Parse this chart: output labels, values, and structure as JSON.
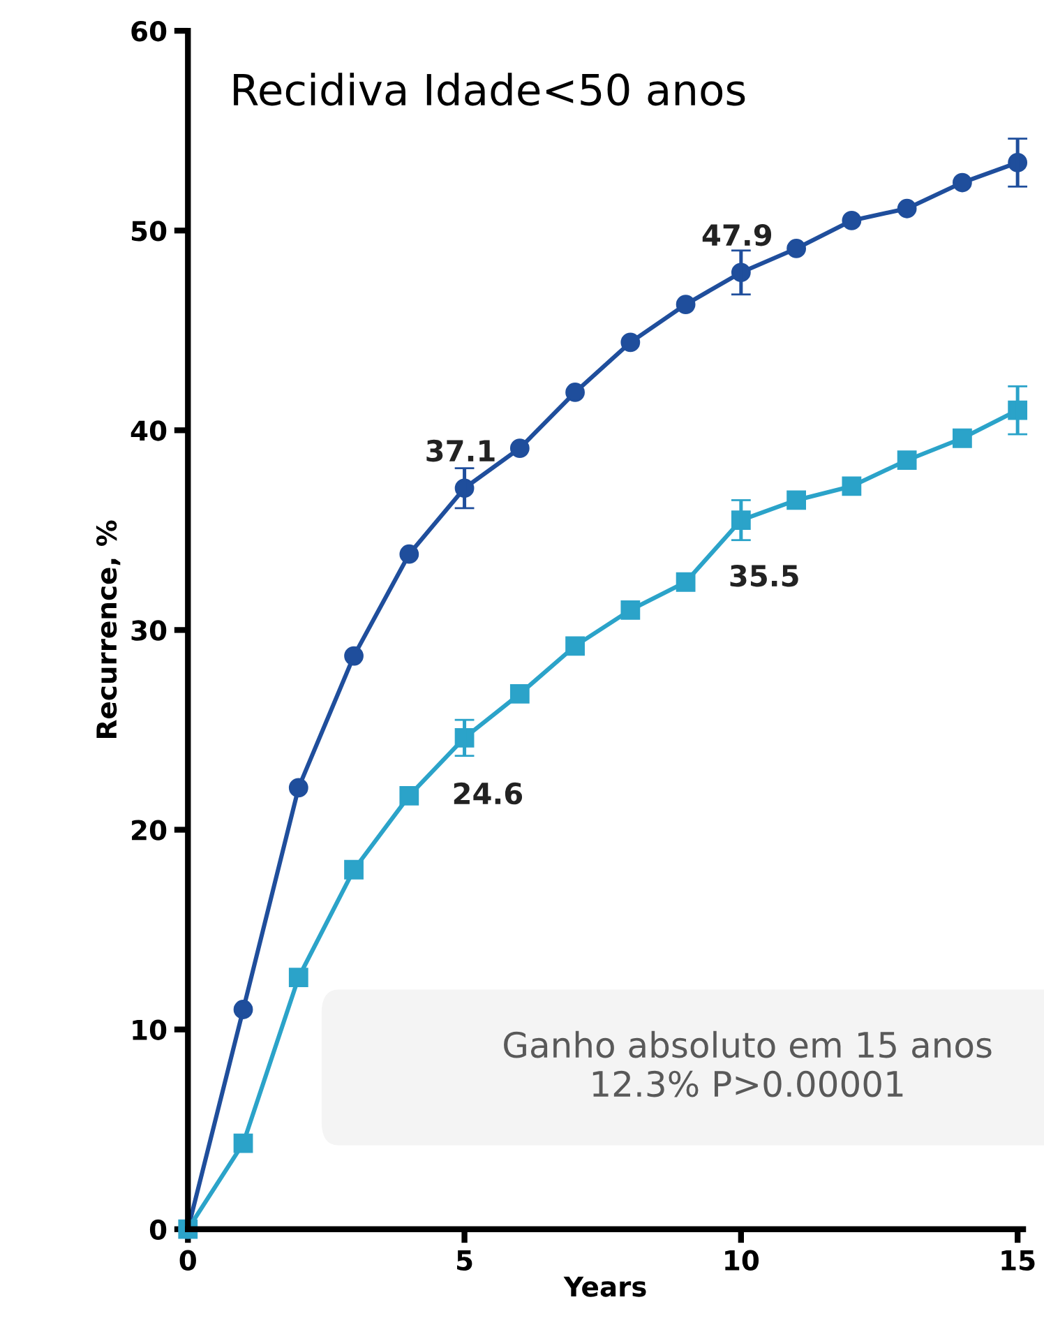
{
  "chart_data": {
    "type": "line",
    "title": "Recidiva Idade<50 anos",
    "xlabel": "Years",
    "ylabel": "Recurrence, %",
    "x": [
      0,
      1,
      2,
      3,
      4,
      5,
      6,
      7,
      8,
      9,
      10,
      11,
      12,
      13,
      14,
      15
    ],
    "series": [
      {
        "color": "#1f4e9c",
        "marker": "circle",
        "values": [
          0,
          11.0,
          22.1,
          28.7,
          33.8,
          37.1,
          39.1,
          41.9,
          44.4,
          46.3,
          47.9,
          49.1,
          50.5,
          51.1,
          52.4,
          53.4
        ],
        "value_labels": [
          null,
          null,
          null,
          null,
          null,
          "37.1",
          null,
          null,
          null,
          null,
          "47.9",
          null,
          null,
          null,
          null,
          null
        ],
        "errors": [
          null,
          null,
          null,
          null,
          null,
          1.0,
          null,
          null,
          null,
          null,
          1.1,
          null,
          null,
          null,
          null,
          1.2
        ]
      },
      {
        "color": "#2ba3c9",
        "marker": "square",
        "values": [
          0,
          4.3,
          12.6,
          18.0,
          21.7,
          24.6,
          26.8,
          29.2,
          31.0,
          32.4,
          35.5,
          36.5,
          37.2,
          38.5,
          39.6,
          41.0
        ],
        "value_labels": [
          null,
          null,
          null,
          null,
          null,
          "24.6",
          null,
          null,
          null,
          null,
          "35.5",
          null,
          null,
          null,
          null,
          null
        ],
        "errors": [
          null,
          null,
          null,
          null,
          null,
          0.9,
          null,
          null,
          null,
          null,
          1.0,
          null,
          null,
          null,
          null,
          1.2
        ]
      }
    ],
    "xlim": [
      0,
      15.1
    ],
    "ylim": [
      0,
      60
    ],
    "xticks": [
      0,
      5,
      10,
      15
    ],
    "yticks": [
      0,
      10,
      20,
      30,
      40,
      50,
      60
    ],
    "grid": false,
    "legend": false,
    "annotations": [
      "Ganho absoluto em 15 anos\n12.3% P>0.00001"
    ]
  }
}
